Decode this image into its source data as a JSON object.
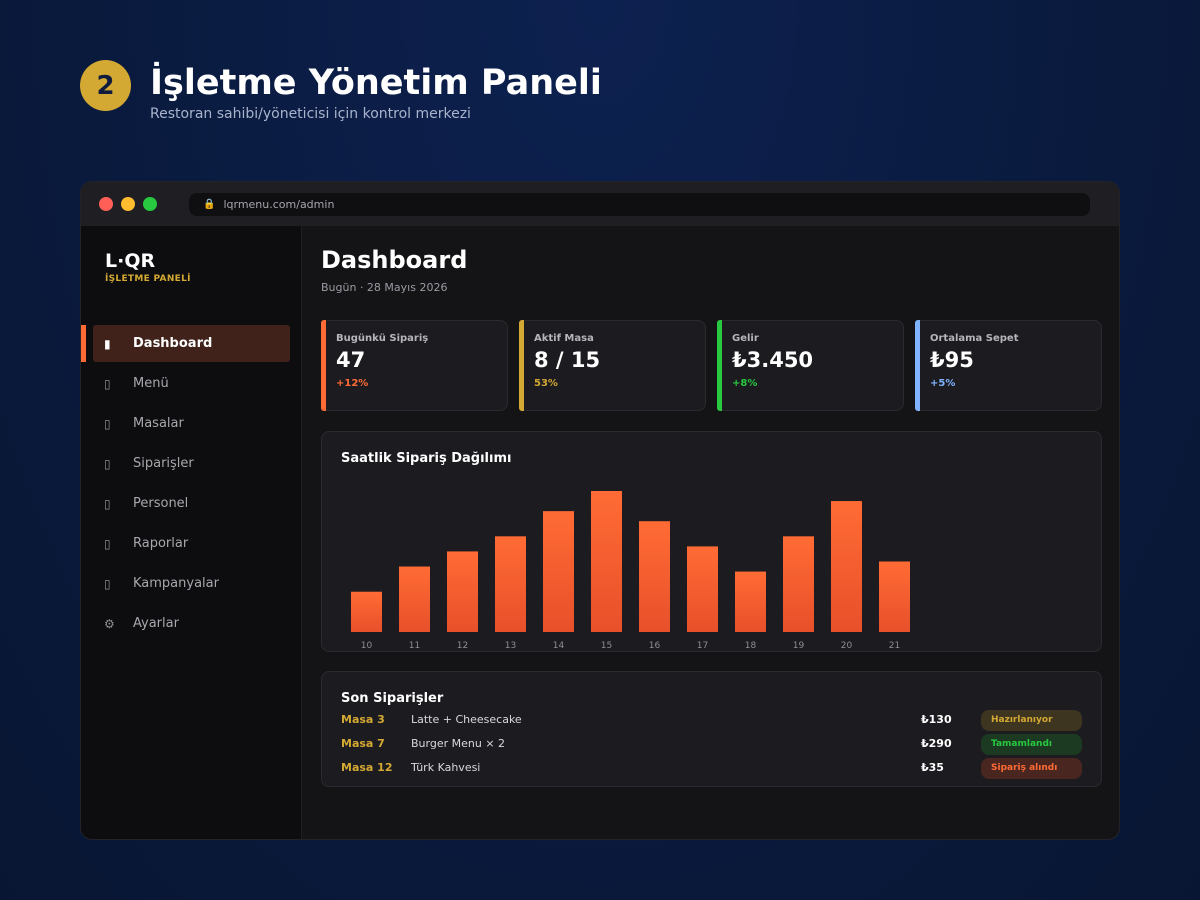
{
  "hero": {
    "step": "2",
    "title": "İşletme Yönetim Paneli",
    "subtitle": "Restoran sahibi/yöneticisi için kontrol merkezi"
  },
  "browser": {
    "url": "lqrmenu.com/admin",
    "lock_icon": "lock-icon",
    "dots": [
      "#ff5f57",
      "#febc2e",
      "#28c840"
    ]
  },
  "sidebar": {
    "logo": "L·QR",
    "logo_sub": "İŞLETME PANELİ",
    "items": [
      {
        "label": "Dashboard",
        "icon": "dashboard-icon",
        "glyph": "▮",
        "active": true
      },
      {
        "label": "Menü",
        "icon": "menu-icon",
        "glyph": "▯",
        "active": false
      },
      {
        "label": "Masalar",
        "icon": "table-icon",
        "glyph": "▯",
        "active": false
      },
      {
        "label": "Siparişler",
        "icon": "orders-icon",
        "glyph": "▯",
        "active": false
      },
      {
        "label": "Personel",
        "icon": "staff-icon",
        "glyph": "▯",
        "active": false
      },
      {
        "label": "Raporlar",
        "icon": "reports-icon",
        "glyph": "▯",
        "active": false
      },
      {
        "label": "Kampanyalar",
        "icon": "campaign-icon",
        "glyph": "▯",
        "active": false
      },
      {
        "label": "Ayarlar",
        "icon": "gear-icon",
        "glyph": "⚙",
        "active": false
      }
    ]
  },
  "main": {
    "title": "Dashboard",
    "date": "Bugün · 28 Mayıs 2026"
  },
  "stats": [
    {
      "label": "Bugünkü Sipariş",
      "value": "47",
      "delta": "+12%",
      "color": "#ff6b35"
    },
    {
      "label": "Aktif Masa",
      "value": "8 / 15",
      "delta": "53%",
      "color": "#d4a933"
    },
    {
      "label": "Gelir",
      "value": "₺3.450",
      "delta": "+8%",
      "color": "#28c840"
    },
    {
      "label": "Ortalama Sepet",
      "value": "₺95",
      "delta": "+5%",
      "color": "#7fb2ff"
    }
  ],
  "chart_data": {
    "type": "bar",
    "title": "Saatlik Sipariş Dağılımı",
    "categories": [
      "10",
      "11",
      "12",
      "13",
      "14",
      "15",
      "16",
      "17",
      "18",
      "19",
      "20",
      "21"
    ],
    "values": [
      4,
      6.5,
      8,
      9.5,
      12,
      14,
      11,
      8.5,
      6,
      9.5,
      13,
      7
    ],
    "ylim": [
      0,
      14
    ],
    "grid": false,
    "colors": {
      "top": "#ff6b35",
      "bottom": "#e8502a"
    }
  },
  "orders": {
    "title": "Son Siparişler",
    "rows": [
      {
        "table": "Masa 3",
        "item": "Latte + Cheesecake",
        "price": "₺130",
        "status": "Hazırlanıyor",
        "status_bg": "#3d3520",
        "status_color": "#d4a933"
      },
      {
        "table": "Masa 7",
        "item": "Burger Menu × 2",
        "price": "₺290",
        "status": "Tamamlandı",
        "status_bg": "#1c3a22",
        "status_color": "#28c840"
      },
      {
        "table": "Masa 12",
        "item": "Türk Kahvesi",
        "price": "₺35",
        "status": "Sipariş alındı",
        "status_bg": "#4a2620",
        "status_color": "#ff6b35"
      }
    ]
  }
}
